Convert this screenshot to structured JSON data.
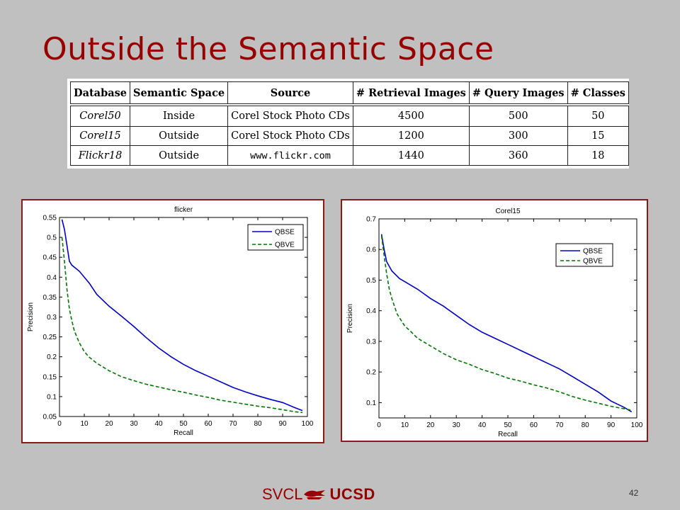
{
  "slide": {
    "title": "Outside the Semantic Space",
    "page_number": "42",
    "footer_left": "SVCL",
    "footer_right": "UCSD"
  },
  "table": {
    "headers": [
      "Database",
      "Semantic Space",
      "Source",
      "# Retrieval Images",
      "# Query Images",
      "# Classes"
    ],
    "rows": [
      [
        "Corel50",
        "Inside",
        "Corel Stock Photo CDs",
        "4500",
        "500",
        "50"
      ],
      [
        "Corel15",
        "Outside",
        "Corel Stock Photo CDs",
        "1200",
        "300",
        "15"
      ],
      [
        "Flickr18",
        "Outside",
        "www.flickr.com",
        "1440",
        "360",
        "18"
      ]
    ]
  },
  "colors": {
    "title": "#990000",
    "qbse": "#0000cc",
    "qbve": "#007700",
    "panel_border": "#8b1a1a"
  },
  "chart_data": [
    {
      "type": "line",
      "title": "flicker",
      "xlabel": "Recall",
      "ylabel": "Precision",
      "xlim": [
        0,
        100
      ],
      "ylim": [
        0.05,
        0.55
      ],
      "xticks": [
        0,
        10,
        20,
        30,
        40,
        50,
        60,
        70,
        80,
        90,
        100
      ],
      "yticks": [
        0.05,
        0.1,
        0.15,
        0.2,
        0.25,
        0.3,
        0.35,
        0.4,
        0.45,
        0.5,
        0.55
      ],
      "legend_position": "top-right",
      "grid": false,
      "series": [
        {
          "name": "QBSE",
          "style": "solid",
          "x": [
            1,
            2,
            3,
            4,
            5,
            8,
            12,
            15,
            20,
            25,
            30,
            35,
            40,
            45,
            50,
            55,
            60,
            65,
            70,
            75,
            80,
            85,
            90,
            95,
            98
          ],
          "y": [
            0.545,
            0.52,
            0.48,
            0.44,
            0.43,
            0.415,
            0.385,
            0.357,
            0.327,
            0.302,
            0.276,
            0.248,
            0.222,
            0.2,
            0.181,
            0.165,
            0.151,
            0.137,
            0.123,
            0.112,
            0.102,
            0.093,
            0.085,
            0.072,
            0.065
          ]
        },
        {
          "name": "QBVE",
          "style": "dashed",
          "x": [
            1,
            2,
            3,
            4,
            5,
            6,
            8,
            10,
            12,
            15,
            20,
            25,
            30,
            35,
            40,
            45,
            50,
            55,
            60,
            65,
            70,
            75,
            80,
            85,
            90,
            95,
            98
          ],
          "y": [
            0.5,
            0.44,
            0.37,
            0.32,
            0.29,
            0.265,
            0.235,
            0.213,
            0.199,
            0.184,
            0.165,
            0.15,
            0.14,
            0.131,
            0.124,
            0.117,
            0.111,
            0.104,
            0.098,
            0.091,
            0.086,
            0.081,
            0.076,
            0.072,
            0.067,
            0.062,
            0.06
          ]
        }
      ]
    },
    {
      "type": "line",
      "title": "Corel15",
      "xlabel": "Recall",
      "ylabel": "Precision",
      "xlim": [
        0,
        100
      ],
      "ylim": [
        0.05,
        0.7
      ],
      "xticks": [
        0,
        10,
        20,
        30,
        40,
        50,
        60,
        70,
        80,
        90,
        100
      ],
      "yticks": [
        0.1,
        0.2,
        0.3,
        0.4,
        0.5,
        0.6,
        0.7
      ],
      "legend_position": "right",
      "grid": false,
      "series": [
        {
          "name": "QBSE",
          "style": "solid",
          "x": [
            1,
            2,
            3,
            5,
            8,
            10,
            15,
            20,
            25,
            30,
            35,
            40,
            45,
            50,
            55,
            60,
            65,
            70,
            75,
            80,
            85,
            90,
            95,
            98
          ],
          "y": [
            0.65,
            0.6,
            0.56,
            0.53,
            0.505,
            0.495,
            0.47,
            0.44,
            0.415,
            0.385,
            0.355,
            0.33,
            0.31,
            0.29,
            0.27,
            0.25,
            0.23,
            0.21,
            0.185,
            0.16,
            0.135,
            0.105,
            0.085,
            0.07
          ]
        },
        {
          "name": "QBVE",
          "style": "dashed",
          "x": [
            1,
            2,
            3,
            4,
            5,
            7,
            10,
            12,
            15,
            20,
            25,
            30,
            35,
            40,
            45,
            50,
            55,
            60,
            65,
            70,
            75,
            80,
            85,
            90,
            95,
            98
          ],
          "y": [
            0.645,
            0.58,
            0.52,
            0.47,
            0.44,
            0.39,
            0.35,
            0.335,
            0.31,
            0.285,
            0.26,
            0.24,
            0.225,
            0.208,
            0.195,
            0.18,
            0.17,
            0.158,
            0.148,
            0.135,
            0.12,
            0.108,
            0.098,
            0.088,
            0.08,
            0.075
          ]
        }
      ]
    }
  ]
}
